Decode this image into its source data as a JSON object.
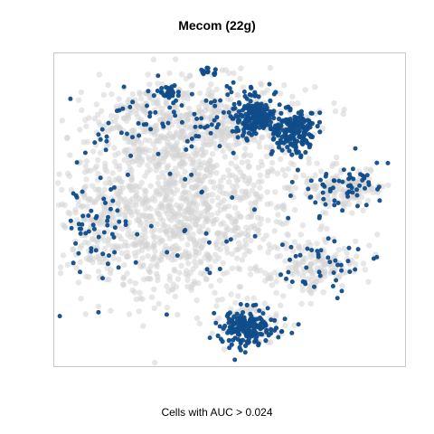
{
  "title": "Mecom (22g)",
  "caption": "Cells with AUC > 0.024",
  "chart_data": {
    "type": "scatter",
    "title": "Mecom (22g)",
    "xlabel": "",
    "ylabel": "",
    "legend": "none",
    "grid": false,
    "series": [
      {
        "name": "",
        "color": "#d3d3d3"
      },
      {
        "name": "",
        "color": "#0f4c8a"
      }
    ]
  },
  "colors": {
    "low": "#d3d3d3",
    "high": "#0f4c8a",
    "border": "#c8c8c8"
  }
}
